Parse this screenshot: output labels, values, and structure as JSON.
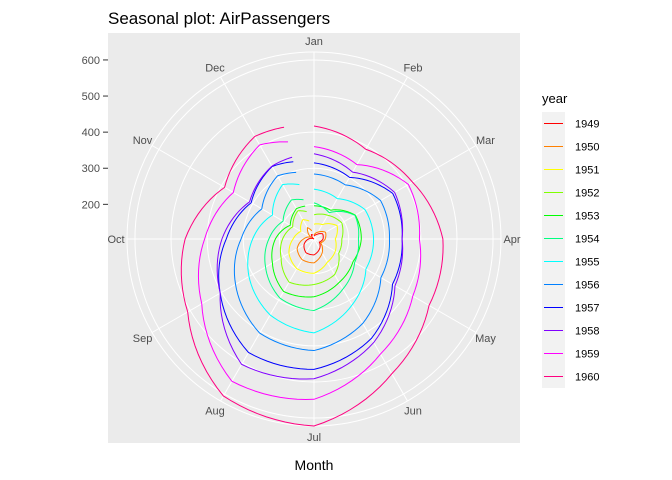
{
  "chart_data": {
    "type": "line",
    "coord": "polar",
    "title": "Seasonal plot: AirPassengers",
    "xlabel": "Month",
    "ylabel": "",
    "categories": [
      "Jan",
      "Feb",
      "Mar",
      "Apr",
      "May",
      "Jun",
      "Jul",
      "Aug",
      "Sep",
      "Oct",
      "Nov",
      "Dec"
    ],
    "r_ticks": [
      200,
      300,
      400,
      500,
      600
    ],
    "r_range": [
      104,
      622
    ],
    "grid": true,
    "legend": {
      "title": "year",
      "position": "right"
    },
    "series": [
      {
        "name": "1949",
        "color": "#FF0000",
        "values": [
          112,
          118,
          132,
          129,
          121,
          135,
          148,
          148,
          136,
          119,
          104,
          118
        ]
      },
      {
        "name": "1950",
        "color": "#FF8000",
        "values": [
          115,
          126,
          141,
          135,
          125,
          149,
          170,
          170,
          158,
          133,
          114,
          140
        ]
      },
      {
        "name": "1951",
        "color": "#FFFF00",
        "values": [
          145,
          150,
          178,
          163,
          172,
          178,
          199,
          199,
          184,
          162,
          146,
          166
        ]
      },
      {
        "name": "1952",
        "color": "#80FF00",
        "values": [
          171,
          180,
          193,
          181,
          183,
          218,
          230,
          242,
          209,
          191,
          172,
          194
        ]
      },
      {
        "name": "1953",
        "color": "#00FF00",
        "values": [
          196,
          196,
          236,
          235,
          229,
          243,
          264,
          272,
          237,
          211,
          180,
          201
        ]
      },
      {
        "name": "1954",
        "color": "#00FF80",
        "values": [
          204,
          188,
          235,
          227,
          234,
          264,
          302,
          293,
          259,
          229,
          203,
          229
        ]
      },
      {
        "name": "1955",
        "color": "#00FFFF",
        "values": [
          242,
          233,
          267,
          269,
          270,
          315,
          364,
          347,
          312,
          274,
          237,
          278
        ]
      },
      {
        "name": "1956",
        "color": "#0080FF",
        "values": [
          284,
          277,
          317,
          313,
          318,
          374,
          413,
          405,
          355,
          306,
          271,
          306
        ]
      },
      {
        "name": "1957",
        "color": "#0000FF",
        "values": [
          315,
          301,
          356,
          348,
          355,
          422,
          465,
          467,
          404,
          347,
          305,
          336
        ]
      },
      {
        "name": "1958",
        "color": "#8000FF",
        "values": [
          340,
          318,
          362,
          348,
          363,
          435,
          491,
          505,
          404,
          359,
          310,
          337
        ]
      },
      {
        "name": "1959",
        "color": "#FF00FF",
        "values": [
          360,
          342,
          406,
          396,
          420,
          472,
          548,
          559,
          463,
          407,
          362,
          405
        ]
      },
      {
        "name": "1960",
        "color": "#FF0080",
        "values": [
          417,
          391,
          419,
          461,
          472,
          535,
          622,
          606,
          508,
          461,
          390,
          432
        ]
      }
    ]
  }
}
